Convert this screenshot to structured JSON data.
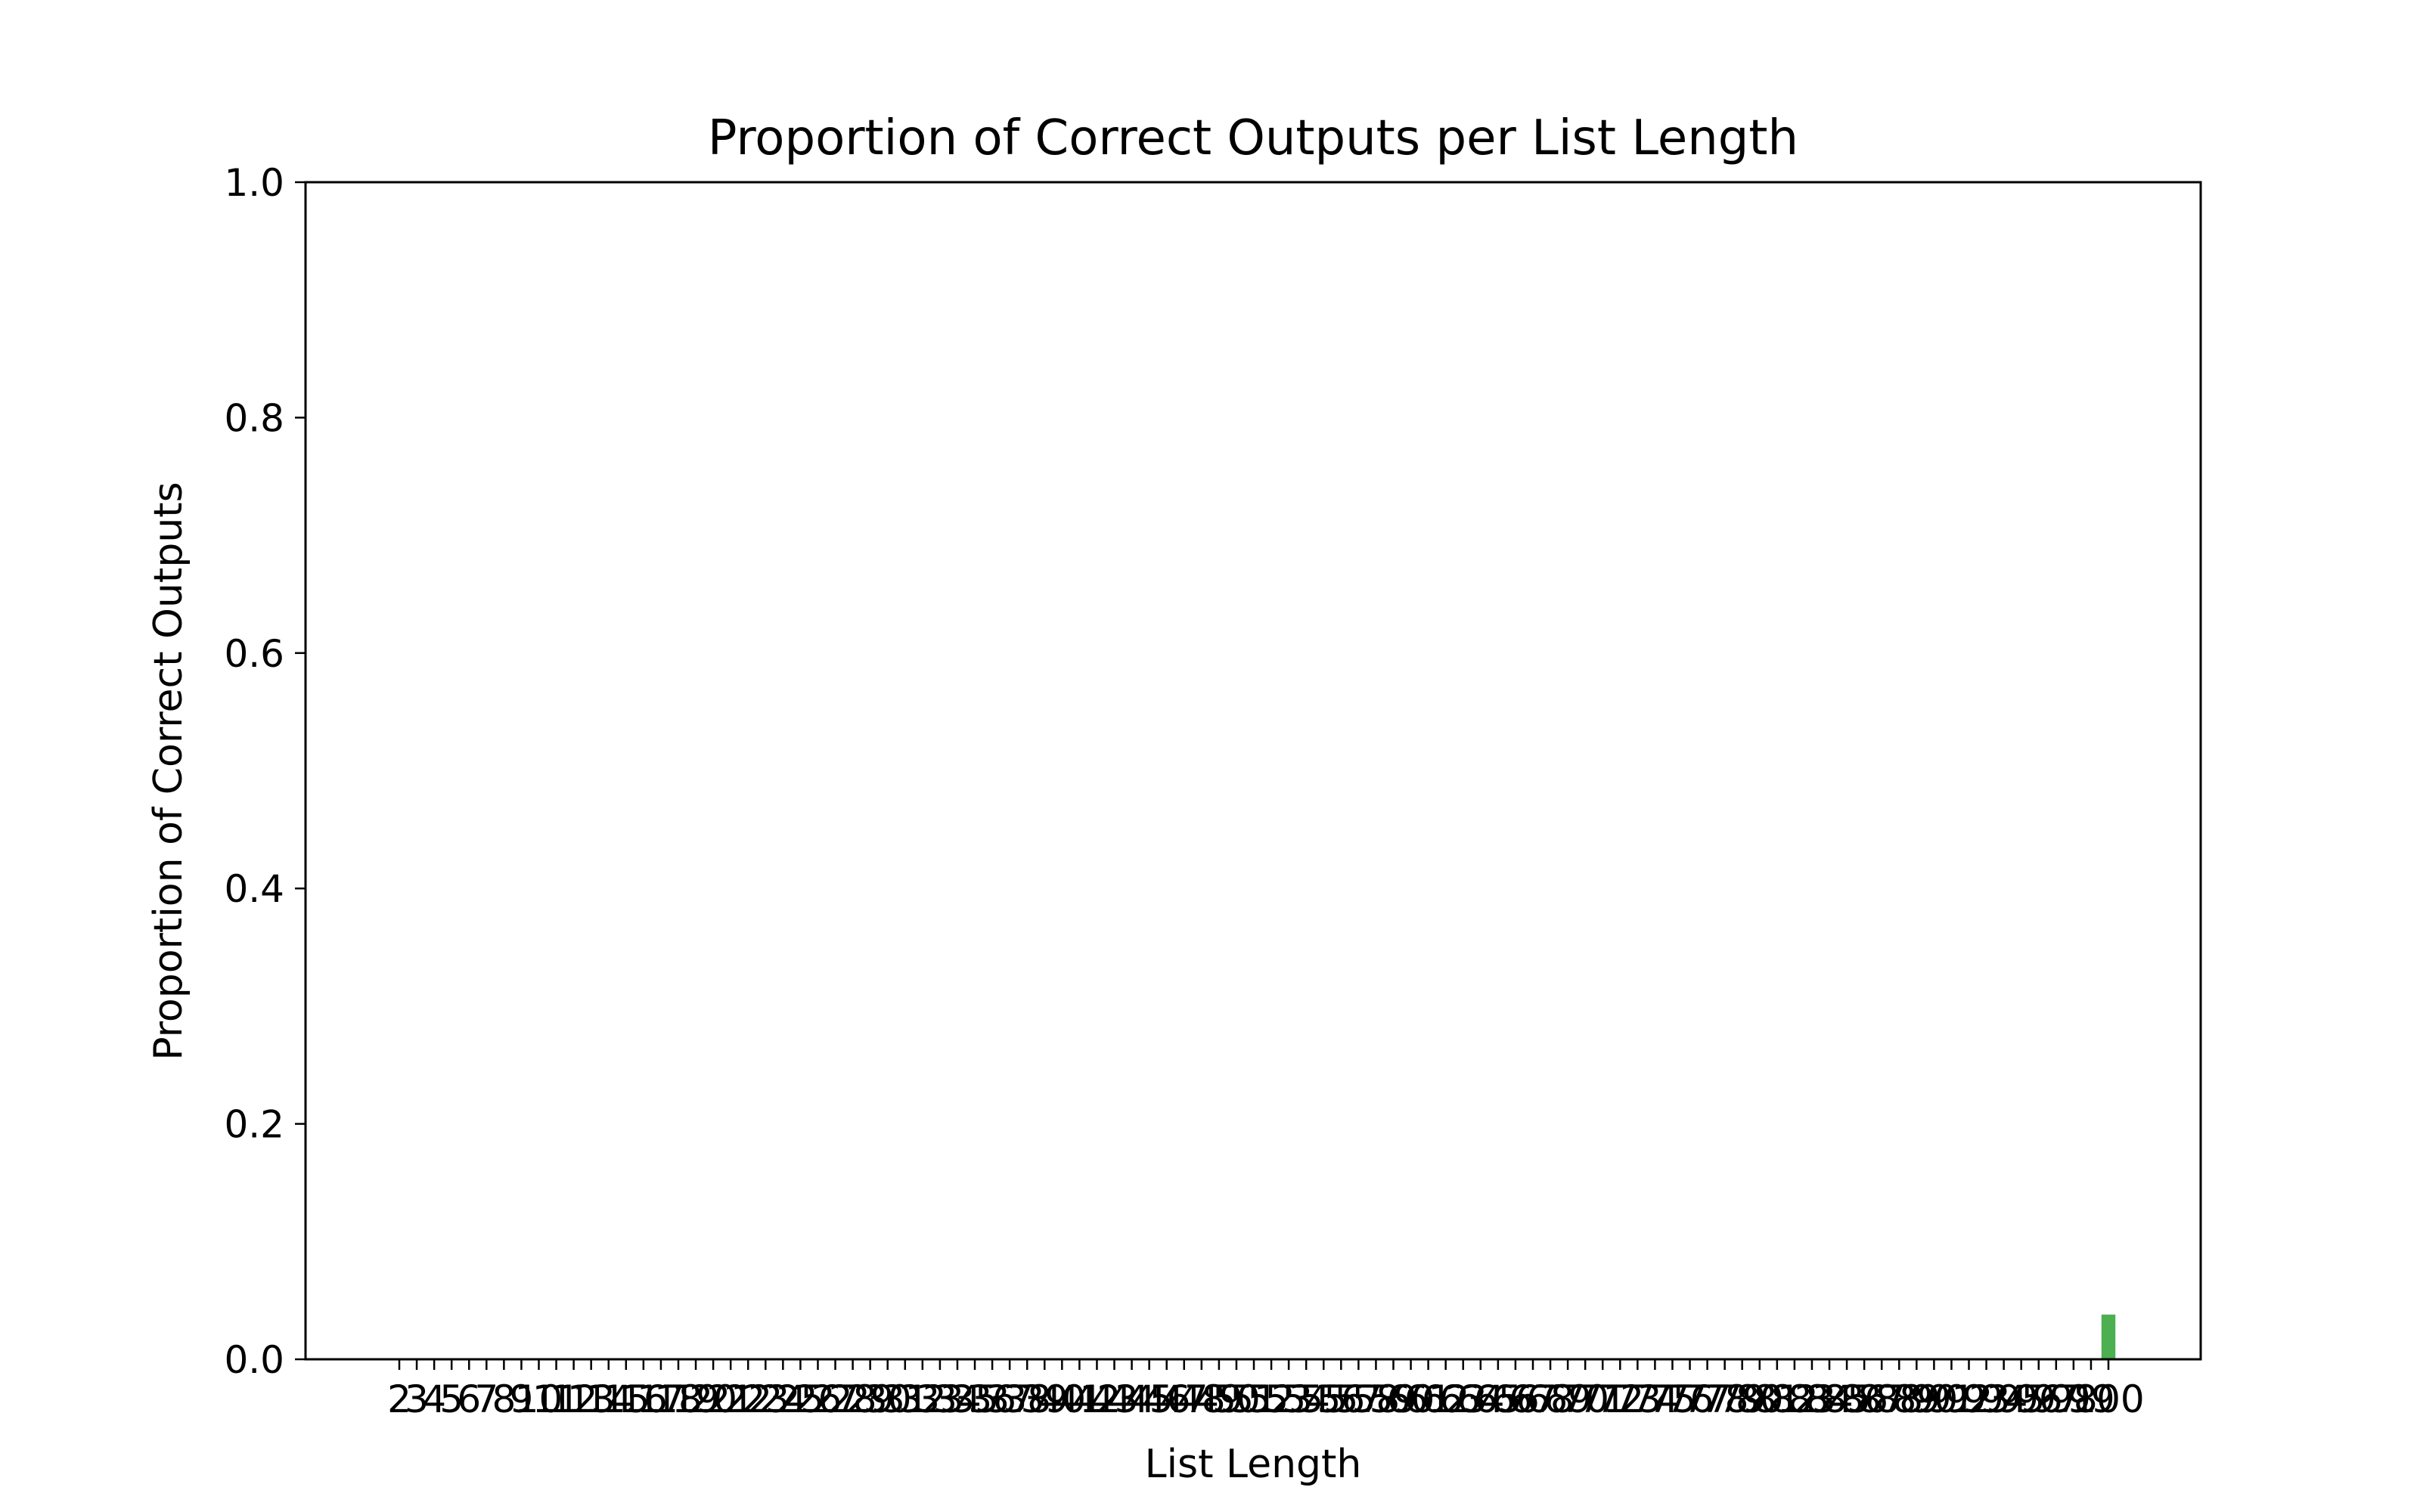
{
  "chart_data": {
    "type": "bar",
    "title": "Proportion of Correct Outputs per List Length",
    "xlabel": "List Length",
    "ylabel": "Proportion of Correct Outputs",
    "ylim": [
      0,
      1.0
    ],
    "y_ticks": [
      "0.0",
      "0.2",
      "0.4",
      "0.6",
      "0.8",
      "1.0"
    ],
    "grid": false,
    "bar_color": "#4caf50",
    "categories": [
      2,
      3,
      4,
      5,
      6,
      7,
      8,
      9,
      10,
      11,
      12,
      13,
      14,
      15,
      16,
      17,
      18,
      19,
      20,
      21,
      22,
      23,
      24,
      25,
      26,
      27,
      28,
      29,
      30,
      31,
      32,
      33,
      34,
      35,
      36,
      37,
      38,
      39,
      40,
      41,
      42,
      43,
      44,
      45,
      46,
      47,
      48,
      49,
      50,
      51,
      52,
      53,
      54,
      55,
      56,
      57,
      58,
      59,
      60,
      61,
      62,
      63,
      64,
      65,
      66,
      67,
      68,
      69,
      70,
      71,
      72,
      73,
      74,
      75,
      76,
      77,
      78,
      79,
      80,
      81,
      82,
      83,
      84,
      85,
      86,
      87,
      88,
      89,
      90,
      91,
      92,
      93,
      94,
      95,
      96,
      97,
      98,
      99,
      100
    ],
    "values": [
      0,
      0,
      0,
      0,
      0,
      0,
      0,
      0,
      0,
      0,
      0,
      0,
      0,
      0,
      0,
      0,
      0,
      0,
      0,
      0,
      0,
      0,
      0,
      0,
      0,
      0,
      0,
      0,
      0,
      0,
      0,
      0,
      0,
      0,
      0,
      0,
      0,
      0,
      0,
      0,
      0,
      0,
      0,
      0,
      0,
      0,
      0,
      0,
      0,
      0,
      0,
      0,
      0,
      0,
      0,
      0,
      0,
      0,
      0,
      0,
      0,
      0,
      0,
      0,
      0,
      0,
      0,
      0,
      0,
      0,
      0,
      0,
      0,
      0,
      0,
      0,
      0,
      0,
      0,
      0,
      0,
      0,
      0,
      0,
      0,
      0,
      0,
      0,
      0,
      0,
      0,
      0,
      0,
      0,
      0,
      0,
      0,
      0,
      0.038
    ]
  }
}
